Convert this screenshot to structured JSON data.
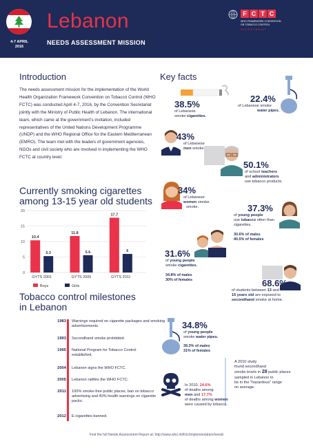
{
  "header": {
    "title": "Lebanon",
    "subtitle": "NEEDS ASSESSMENT MISSION",
    "date_line1": "4-7 APRIL",
    "date_line2": "2016",
    "fctc_letters": [
      "F",
      "C",
      "T",
      "C"
    ],
    "fctc_sub_line1": "WHO FRAMEWORK CONVENTION",
    "fctc_sub_line2": "ON TOBACCO CONTROL",
    "fctc_secretariat": "SECRETARIAT",
    "colors": {
      "navy": "#1e2a57",
      "red": "#e8334a"
    }
  },
  "introduction": {
    "title": "Introduction",
    "text": "The needs assessment mission for the implementation of the World Health Organization Framework Convention on Tobacco Control (WHO FCTC) was conducted April 4-7, 2016, by the Convention Secretariat jointly with the Ministry of Public Health of Lebanon. The international team, which came at the government's invitation, included representatives of the United Nations Development Programme (UNDP) and the WHO Regional Office for the Eastern Mediterranean (EMRO). The team met with the leaders of government agencies, NGOs and civil society who are involved in implementing the WHO FCTC at country level."
  },
  "chart_section": {
    "title_line1": "Currently smoking cigarettes",
    "title_line2": "among 13-15 year old students"
  },
  "chart_data": {
    "type": "bar",
    "categories": [
      "GYTS 2001",
      "GYTS 2005",
      "GYTS 2011"
    ],
    "series": [
      {
        "name": "Boys",
        "values": [
          10.4,
          11.8,
          17.7
        ],
        "color": "#e8334a"
      },
      {
        "name": "Girls",
        "values": [
          5.3,
          5.6,
          6
        ],
        "color": "#1e2a57"
      }
    ],
    "value_labels": {
      "Boys": [
        "10.4",
        "11.8",
        "17.7"
      ],
      "Girls": [
        "5.3",
        "5.6",
        "6"
      ]
    },
    "yticks": [
      "0",
      "5",
      "10",
      "15",
      "20"
    ],
    "ylim": [
      0,
      20
    ],
    "grid": true,
    "legend": "bottom"
  },
  "milestones": {
    "title_line1": "Tobacco control milestones",
    "title_line2": "in Lebanon",
    "items": [
      {
        "year": "1983",
        "text": "Warnings required on cigarette packages and smoking advertisements."
      },
      {
        "year": "1993",
        "text": "Secondhand smoke prohibited."
      },
      {
        "year": "1995",
        "text": "National Program for Tobacco Control established."
      },
      {
        "year": "2004",
        "text": "Lebanon signs the WHO FCTC."
      },
      {
        "year": "2005",
        "text": "Lebanon ratifies the WHO FCTC."
      },
      {
        "year": "2011",
        "text": "100% smoke-free public places, ban on tobacco advertising and 40% health warnings on cigarette packs."
      },
      {
        "year": "2012",
        "text": "E-cigarettes banned."
      }
    ]
  },
  "key_facts": {
    "title": "Key facts",
    "cigarettes": {
      "pct": "38.5%",
      "pre": "of Lebanese",
      "pre2": "smoke",
      "bold": "cigarettes."
    },
    "waterpipes": {
      "pct": "22.4%",
      "pre": "of Lebanese smoke",
      "bold": "water pipes."
    },
    "men": {
      "pct": "43%",
      "pre": "of Lebanese",
      "bold": "men",
      "post": "smoke."
    },
    "teachers": {
      "pct": "50.1%",
      "pre": "of school",
      "bold1": "teachers",
      "mid": "and",
      "bold2": "administrators",
      "post": "use tobacco products."
    },
    "women": {
      "pct": "34%",
      "pre": "of Lebanese",
      "bold": "women",
      "post": "smoke."
    },
    "young_other": {
      "pct": "37.3%",
      "pre": "of",
      "bold1": "young people",
      "mid": "use",
      "bold2": "tobacco",
      "post": "other than cigarettes.",
      "males": "30.6% of males",
      "females": "40.5% of females"
    },
    "young_cig": {
      "pct": "31.6%",
      "pre": "of",
      "bold1": "young people",
      "mid": "smoke",
      "bold2": "cigarettes.",
      "males": "34.8% of males",
      "females": "30% of females"
    },
    "secondhand": {
      "pct": "68.6%",
      "line1_pre": "of students between",
      "line1_bold": "13",
      "line1_post": "and",
      "line2_bold": "15 years old",
      "line2_post": "are exposed to",
      "line3_bold": "secondhand",
      "line3_post": "smoke at home."
    },
    "young_wp": {
      "pct": "34.8%",
      "pre": "of",
      "bold1": "young people",
      "mid": "smoke",
      "bold2": "water pipes.",
      "males": "39.3% of males",
      "females": "31% of females"
    },
    "deaths": {
      "line1": "In 2010,",
      "pct1": "24.6%",
      "line2": "of deaths among",
      "bold_men": "men",
      "and": "and",
      "pct2": "17.7%",
      "line3": "of deaths among",
      "bold_women": "women",
      "line4": "were caused by tobacco."
    },
    "study": {
      "l1": "A 2010 study",
      "l2": "found secondhand",
      "l3": "smoke levels in",
      "num": "28",
      "l4": "public places",
      "l5": "sampled in Lebanon to",
      "l6": "be in the \"hazardous\" range",
      "l7": "on average."
    }
  },
  "footer": {
    "text": "Find the full Needs Assessment Report at: http://www.who.int/fctc/implementation/needs"
  }
}
